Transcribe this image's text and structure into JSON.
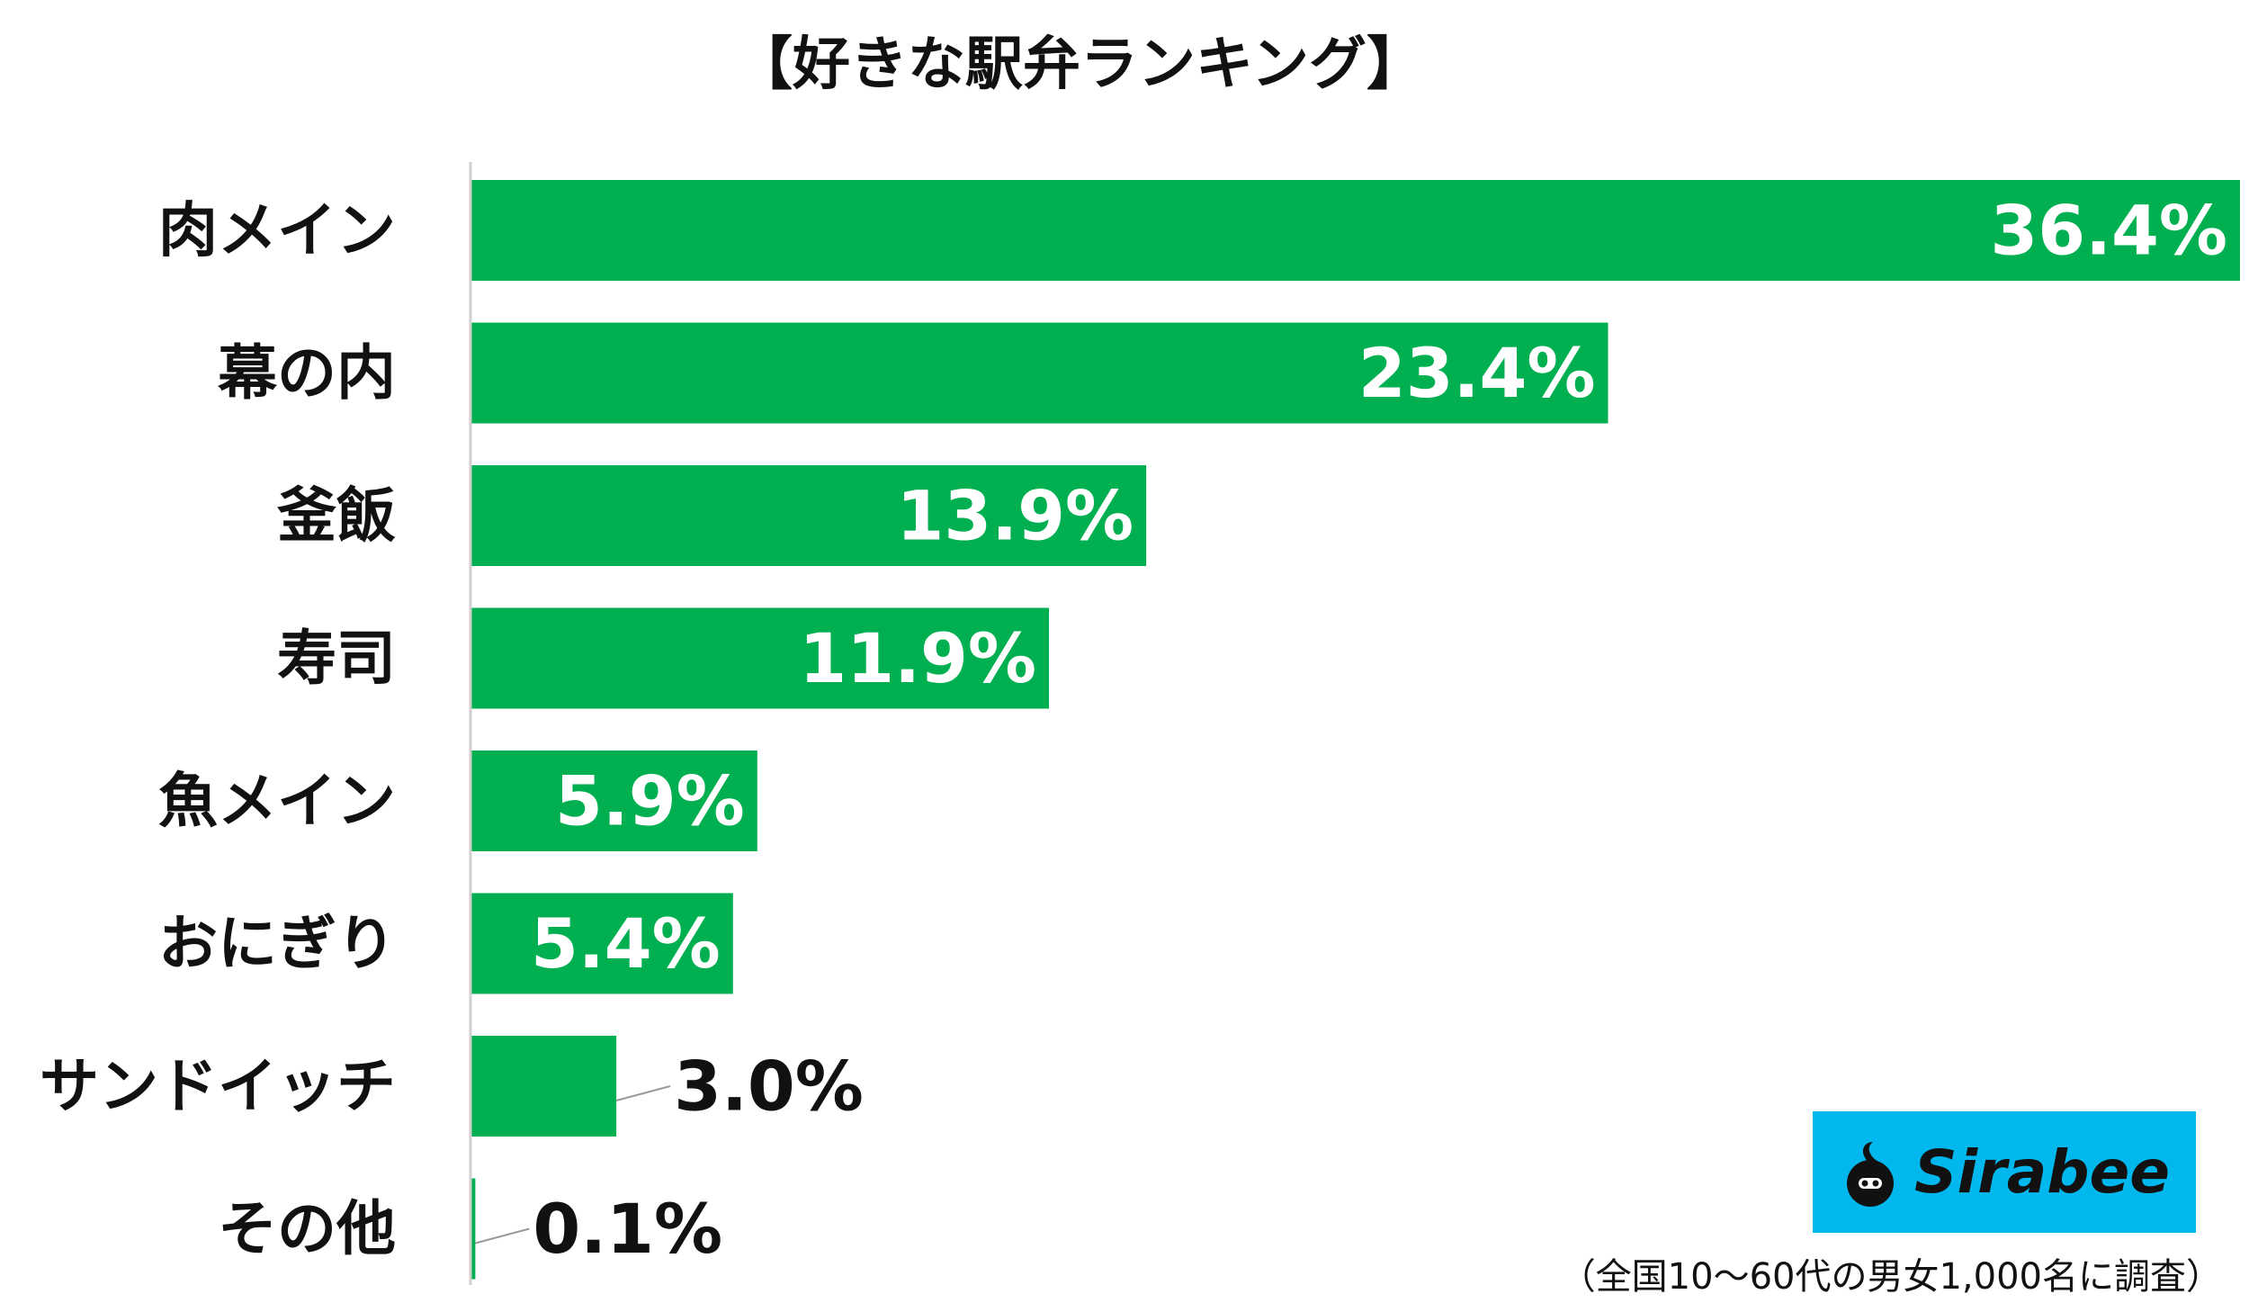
{
  "chart_data": {
    "type": "bar",
    "orientation": "horizontal",
    "title": "【好きな駅弁ランキング】",
    "categories": [
      "肉メイン",
      "幕の内",
      "釜飯",
      "寿司",
      "魚メイン",
      "おにぎり",
      "サンドイッチ",
      "その他"
    ],
    "values": [
      36.4,
      23.4,
      13.9,
      11.9,
      5.9,
      5.4,
      3.0,
      0.1
    ],
    "value_labels": [
      "36.4%",
      "23.4%",
      "13.9%",
      "11.9%",
      "5.9%",
      "5.4%",
      "3.0%",
      "0.1%"
    ],
    "xlim": [
      0,
      36.4
    ],
    "grid": false,
    "bar_color": "#00b050"
  },
  "logo": {
    "text": "Sirabee",
    "background": "#00b7ee",
    "icon": "sirabee-logo-icon"
  },
  "note": "（全国10〜60代の男女1,000名に調査）"
}
